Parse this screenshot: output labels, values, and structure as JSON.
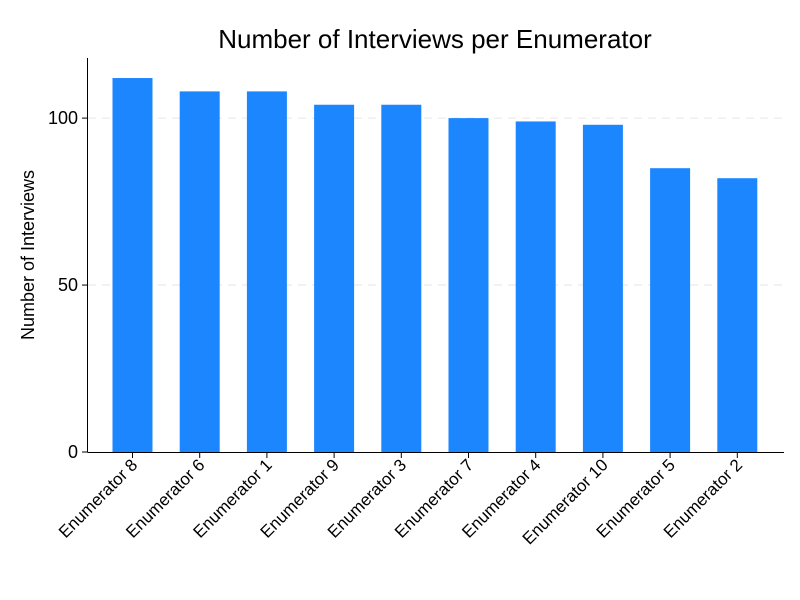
{
  "chart_data": {
    "type": "bar",
    "title": "Number of Interviews per Enumerator",
    "xlabel": "",
    "ylabel": "Number of Interviews",
    "categories": [
      "Enumerator 8",
      "Enumerator 6",
      "Enumerator 1",
      "Enumerator 9",
      "Enumerator 3",
      "Enumerator 7",
      "Enumerator 4",
      "Enumerator 10",
      "Enumerator 5",
      "Enumerator 2"
    ],
    "values": [
      112,
      108,
      108,
      104,
      104,
      100,
      99,
      98,
      85,
      82
    ],
    "ylim": [
      0,
      118
    ],
    "yticks": [
      0,
      50,
      100
    ],
    "grid": true,
    "bar_color": "#1c86ff"
  }
}
